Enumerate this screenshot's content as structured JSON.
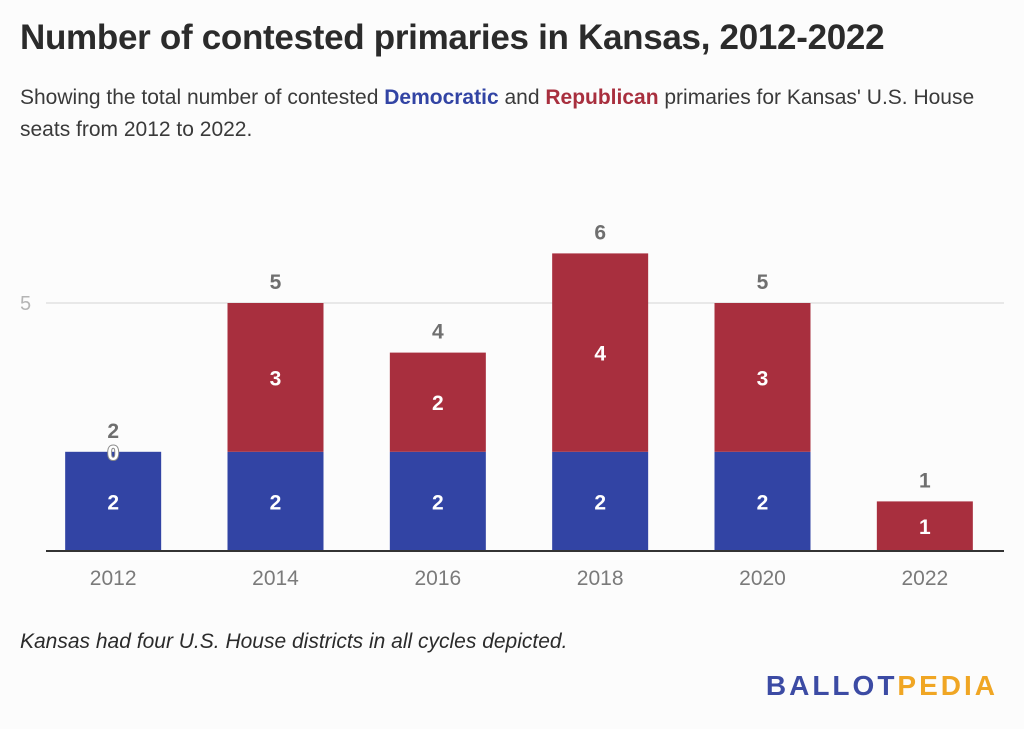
{
  "header": {
    "title": "Number of contested primaries in Kansas, 2012-2022",
    "subtitle_pre": "Showing the total number of contested ",
    "subtitle_dem": "Democratic",
    "subtitle_mid": " and ",
    "subtitle_rep": "Republican",
    "subtitle_post": " primaries for Kansas' U.S. House seats from 2012 to 2022."
  },
  "footnote": "Kansas had four U.S. House districts in all cycles depicted.",
  "brand": {
    "part1": "BALLOT",
    "part2": "PEDIA"
  },
  "colors": {
    "democratic": "#3244a4",
    "republican": "#a82f3e",
    "label_white": "#ffffff",
    "total_label": "#6f6f6f",
    "axis_text": "#7a7a7a",
    "gridline": "#e2e2e2",
    "baseline": "#333333"
  },
  "chart_data": {
    "type": "bar",
    "stacked": true,
    "categories": [
      "2012",
      "2014",
      "2016",
      "2018",
      "2020",
      "2022"
    ],
    "series": [
      {
        "name": "Democratic",
        "values": [
          2,
          2,
          2,
          2,
          2,
          0
        ]
      },
      {
        "name": "Republican",
        "values": [
          0,
          3,
          2,
          4,
          3,
          1
        ]
      }
    ],
    "totals": [
      2,
      5,
      4,
      6,
      5,
      1
    ],
    "y_ticks": [
      5
    ],
    "ylim": [
      0,
      6
    ],
    "grid": true,
    "legend": "none"
  }
}
